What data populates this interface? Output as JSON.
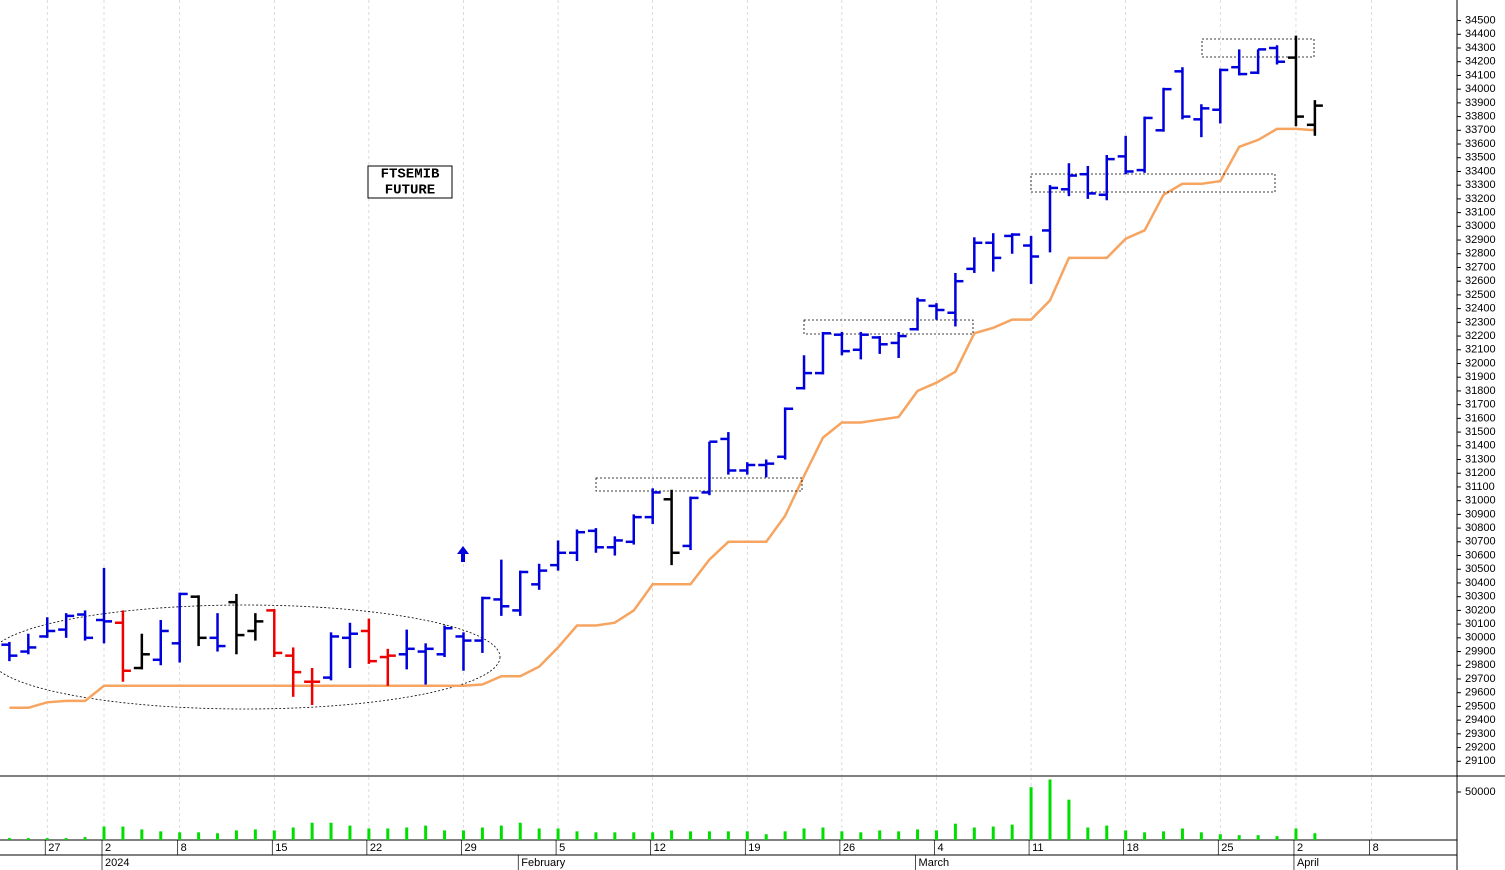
{
  "chart_data": {
    "type": "ohlc",
    "annotation": [
      "FTSEMIB",
      "FUTURE"
    ],
    "categories": [
      null,
      null,
      "27",
      null,
      null,
      "2",
      null,
      null,
      null,
      "8",
      null,
      null,
      null,
      null,
      "15",
      null,
      null,
      null,
      null,
      "22",
      null,
      null,
      null,
      null,
      "29",
      null,
      null,
      null,
      null,
      "5",
      null,
      null,
      null,
      null,
      "12",
      null,
      null,
      null,
      null,
      "19",
      null,
      null,
      null,
      null,
      "26",
      null,
      null,
      null,
      null,
      "4",
      null,
      null,
      null,
      null,
      "11",
      null,
      null,
      null,
      null,
      "18",
      null,
      null,
      null,
      null,
      "25",
      null,
      null,
      null,
      "2",
      null,
      null,
      null,
      "8"
    ],
    "month_labels": [
      null,
      null,
      null,
      null,
      null,
      "2024",
      null,
      null,
      null,
      null,
      null,
      null,
      null,
      null,
      null,
      null,
      null,
      null,
      null,
      null,
      null,
      null,
      null,
      null,
      null,
      null,
      null,
      "February",
      null,
      null,
      null,
      null,
      null,
      null,
      null,
      null,
      null,
      null,
      null,
      null,
      null,
      null,
      null,
      null,
      null,
      null,
      null,
      null,
      "March",
      null,
      null,
      null,
      null,
      null,
      null,
      null,
      null,
      null,
      null,
      null,
      null,
      null,
      null,
      null,
      null,
      null,
      null,
      null,
      "April",
      null,
      null,
      null,
      null
    ],
    "open": [
      29950,
      29900,
      30010,
      30060,
      30170,
      30130,
      30110,
      29780,
      29840,
      29960,
      30300,
      30000,
      30260,
      30050,
      30200,
      29870,
      29680,
      29710,
      30000,
      30050,
      29860,
      29880,
      29900,
      29880,
      30010,
      29980,
      30280,
      30200,
      30390,
      30530,
      30620,
      30780,
      30660,
      30700,
      30880,
      31010,
      30670,
      31060,
      31450,
      31220,
      31260,
      31320,
      31820,
      31930,
      32210,
      32100,
      32190,
      32150,
      32250,
      32420,
      32370,
      32690,
      32880,
      32930,
      32860,
      32970,
      33270,
      33380,
      33230,
      33510,
      33410,
      33700,
      34130,
      33780,
      33850,
      34160,
      34120,
      34300,
      34230,
      33740,
      null,
      null,
      null
    ],
    "high": [
      29970,
      30030,
      30150,
      30180,
      30200,
      30510,
      30200,
      30030,
      30130,
      30330,
      30310,
      30180,
      30320,
      30180,
      30210,
      29930,
      29780,
      30040,
      30110,
      30140,
      29920,
      30060,
      29960,
      30090,
      30040,
      30300,
      30570,
      30490,
      30540,
      30710,
      30790,
      30800,
      30740,
      30900,
      31090,
      31080,
      31030,
      31430,
      31500,
      31280,
      31300,
      31680,
      32060,
      32230,
      32230,
      32230,
      32200,
      32230,
      32480,
      32440,
      32660,
      32920,
      32950,
      32950,
      32930,
      33300,
      33460,
      33440,
      33520,
      33660,
      33800,
      34010,
      34160,
      33890,
      34150,
      34290,
      34290,
      34320,
      34390,
      33920,
      null,
      null,
      null
    ],
    "low": [
      29830,
      29880,
      30000,
      30000,
      29980,
      29960,
      29680,
      29770,
      29800,
      29820,
      29940,
      29900,
      29880,
      29980,
      29860,
      29570,
      29510,
      29690,
      29780,
      29810,
      29650,
      29770,
      29660,
      29860,
      29760,
      29890,
      30160,
      30160,
      30350,
      30490,
      30560,
      30620,
      30600,
      30680,
      30830,
      30530,
      30640,
      31040,
      31190,
      31190,
      31170,
      31300,
      31810,
      31920,
      32060,
      32030,
      32070,
      32040,
      32240,
      32320,
      32270,
      32660,
      32670,
      32800,
      32580,
      32810,
      33220,
      33200,
      33190,
      33380,
      33390,
      33690,
      33780,
      33650,
      33750,
      34100,
      34110,
      34180,
      33730,
      33660,
      null,
      null,
      null
    ],
    "close": [
      29870,
      29930,
      30050,
      30160,
      30000,
      30120,
      29760,
      29880,
      30050,
      30320,
      30000,
      29940,
      30020,
      30120,
      29890,
      29750,
      29680,
      30010,
      30030,
      29830,
      29870,
      29920,
      29920,
      30070,
      29980,
      30290,
      30230,
      30480,
      30490,
      30620,
      30770,
      30660,
      30710,
      30880,
      31060,
      30620,
      31020,
      31430,
      31220,
      31260,
      31270,
      31670,
      31930,
      32220,
      32090,
      32210,
      32140,
      32200,
      32460,
      32390,
      32600,
      32880,
      32770,
      32940,
      32780,
      33280,
      33370,
      33240,
      33490,
      33400,
      33790,
      34000,
      33800,
      33860,
      34140,
      34110,
      34290,
      34200,
      33800,
      33880,
      null,
      null,
      null
    ],
    "bar_colors": [
      "#0000dd",
      "#0000dd",
      "#0000dd",
      "#0000dd",
      "#0000dd",
      "#0000dd",
      "#ee0000",
      "#000000",
      "#0000dd",
      "#0000dd",
      "#000000",
      "#0000dd",
      "#000000",
      "#000000",
      "#ee0000",
      "#ee0000",
      "#ee0000",
      "#0000dd",
      "#0000dd",
      "#ee0000",
      "#ee0000",
      "#0000dd",
      "#0000dd",
      "#0000dd",
      "#0000dd",
      "#0000dd",
      "#0000dd",
      "#0000dd",
      "#0000dd",
      "#0000dd",
      "#0000dd",
      "#0000dd",
      "#0000dd",
      "#0000dd",
      "#0000dd",
      "#000000",
      "#0000dd",
      "#0000dd",
      "#0000dd",
      "#0000dd",
      "#0000dd",
      "#0000dd",
      "#0000dd",
      "#0000dd",
      "#0000dd",
      "#0000dd",
      "#0000dd",
      "#0000dd",
      "#0000dd",
      "#0000dd",
      "#0000dd",
      "#0000dd",
      "#0000dd",
      "#0000dd",
      "#0000dd",
      "#0000dd",
      "#0000dd",
      "#0000dd",
      "#0000dd",
      "#0000dd",
      "#0000dd",
      "#0000dd",
      "#0000dd",
      "#0000dd",
      "#0000dd",
      "#0000dd",
      "#0000dd",
      "#0000dd",
      "#000000",
      "#000000",
      null,
      null,
      null
    ],
    "stop_line": {
      "color": "#f6a460",
      "values": [
        29490,
        29490,
        29530,
        29540,
        29540,
        29650,
        29650,
        29650,
        29650,
        29650,
        29650,
        29650,
        29650,
        29650,
        29650,
        29650,
        29650,
        29650,
        29650,
        29650,
        29650,
        29650,
        29650,
        29650,
        29650,
        29660,
        29720,
        29720,
        29790,
        29930,
        30090,
        30090,
        30110,
        30200,
        30390,
        30390,
        30390,
        30570,
        30700,
        30700,
        30700,
        30890,
        31180,
        31460,
        31570,
        31570,
        31590,
        31610,
        31800,
        31860,
        31940,
        32220,
        32260,
        32320,
        32320,
        32460,
        32770,
        32770,
        32770,
        32910,
        32970,
        33230,
        33310,
        33310,
        33330,
        33580,
        33630,
        33710,
        33710,
        33700,
        null,
        null,
        null
      ]
    },
    "ylim": [
      29000,
      34650
    ],
    "yticks": [
      29100,
      29200,
      29300,
      29400,
      29500,
      29600,
      29700,
      29800,
      29900,
      30000,
      30100,
      30200,
      30300,
      30400,
      30500,
      30600,
      30700,
      30800,
      30900,
      31000,
      31100,
      31200,
      31300,
      31400,
      31500,
      31600,
      31700,
      31800,
      31900,
      32000,
      32100,
      32200,
      32300,
      32400,
      32500,
      32600,
      32700,
      32800,
      32900,
      33000,
      33100,
      33200,
      33300,
      33400,
      33500,
      33600,
      33700,
      33800,
      33900,
      34000,
      34100,
      34200,
      34300,
      34400,
      34500
    ],
    "volume": {
      "color": "#00dd00",
      "values": [
        2000,
        2000,
        2000,
        2000,
        3000,
        14000,
        14000,
        11000,
        9000,
        8000,
        8000,
        7000,
        10000,
        11000,
        10000,
        13000,
        18000,
        18000,
        15000,
        12000,
        12000,
        13000,
        15000,
        10000,
        10000,
        13000,
        15000,
        18000,
        12000,
        12000,
        9000,
        8000,
        8000,
        8000,
        8000,
        10000,
        9000,
        9000,
        9000,
        9000,
        6000,
        9000,
        12000,
        13000,
        9000,
        8000,
        10000,
        9000,
        11000,
        10000,
        17000,
        13000,
        14000,
        16000,
        55000,
        63000,
        42000,
        13000,
        15000,
        10000,
        8000,
        9000,
        12000,
        8000,
        6000,
        5000,
        5000,
        4000,
        12000,
        7000,
        null,
        null,
        null
      ],
      "ylim": [
        0,
        65600
      ],
      "yticks": [
        50000
      ]
    },
    "grid": true
  }
}
